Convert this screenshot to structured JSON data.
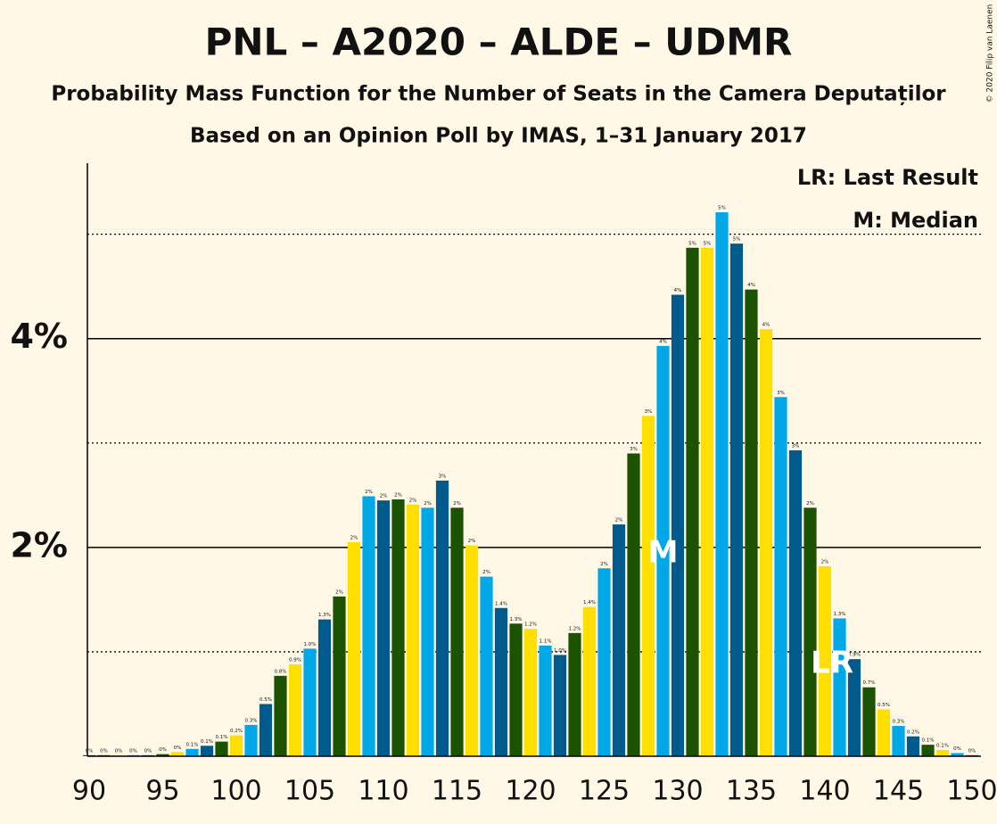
{
  "chart_data": {
    "type": "bar",
    "title": "PNL – A2020 – ALDE – UDMR",
    "subtitle": "Probability Mass Function for the Number of Seats in the Camera Deputaților",
    "subtitle2": "Based on an Opinion Poll by IMAS, 1–31 January 2017",
    "legend_lines": [
      "LR: Last Result",
      "M: Median"
    ],
    "copyright": "© 2020 Filip van Laenen",
    "x": [
      90,
      91,
      92,
      93,
      94,
      95,
      96,
      97,
      98,
      99,
      100,
      101,
      102,
      103,
      104,
      105,
      106,
      107,
      108,
      109,
      110,
      111,
      112,
      113,
      114,
      115,
      116,
      117,
      118,
      119,
      120,
      121,
      122,
      123,
      124,
      125,
      126,
      127,
      128,
      129,
      130,
      131,
      132,
      133,
      134,
      135,
      136,
      137,
      138,
      139,
      140,
      141,
      142,
      143,
      144,
      145,
      146,
      147,
      148,
      149,
      150
    ],
    "values": [
      0.01,
      0.01,
      0.01,
      0.01,
      0.01,
      0.02,
      0.04,
      0.07,
      0.1,
      0.14,
      0.2,
      0.3,
      0.5,
      0.77,
      0.88,
      1.03,
      1.31,
      1.53,
      2.05,
      2.49,
      2.45,
      2.46,
      2.41,
      2.38,
      2.64,
      2.38,
      2.02,
      1.72,
      1.42,
      1.27,
      1.22,
      1.06,
      0.97,
      1.18,
      1.43,
      1.8,
      2.22,
      2.9,
      3.26,
      3.93,
      4.42,
      4.87,
      4.87,
      5.21,
      4.91,
      4.47,
      4.09,
      3.44,
      2.93,
      2.38,
      1.82,
      1.32,
      0.93,
      0.66,
      0.45,
      0.29,
      0.19,
      0.11,
      0.06,
      0.03,
      0.01
    ],
    "value_labels": [
      "0%",
      "0%",
      "0%",
      "0%",
      "0%",
      "0%",
      "0%",
      "0.1%",
      "0.1%",
      "0.1%",
      "0.2%",
      "0.3%",
      "0.5%",
      "0.8%",
      "0.9%",
      "1.0%",
      "1.3%",
      "2%",
      "2%",
      "2%",
      "2%",
      "2%",
      "2%",
      "2%",
      "3%",
      "2%",
      "2%",
      "2%",
      "1.4%",
      "1.3%",
      "1.2%",
      "1.1%",
      "1.0%",
      "1.2%",
      "1.4%",
      "2%",
      "2%",
      "3%",
      "3%",
      "4%",
      "4%",
      "5%",
      "5%",
      "5%",
      "5%",
      "4%",
      "4%",
      "3%",
      "3%",
      "2%",
      "2%",
      "1.3%",
      "0.9%",
      "0.7%",
      "0.5%",
      "0.3%",
      "0.2%",
      "0.1%",
      "0.1%",
      "0%",
      "0%"
    ],
    "colors": [
      "#005a8c",
      "#1b5300",
      "#ffdf00",
      "#00a8e8"
    ],
    "xlim": [
      90,
      150
    ],
    "xticks": [
      90,
      95,
      100,
      105,
      110,
      115,
      120,
      125,
      130,
      135,
      140,
      145,
      150
    ],
    "ylim": [
      0,
      5.68
    ],
    "yticks": [
      {
        "value": 2,
        "label": "2%"
      },
      {
        "value": 4,
        "label": "4%"
      }
    ],
    "minor_grid": [
      1,
      3,
      5
    ],
    "annotations": [
      {
        "text": "M",
        "x": 129
      },
      {
        "text": "LR",
        "x": 140
      }
    ]
  }
}
